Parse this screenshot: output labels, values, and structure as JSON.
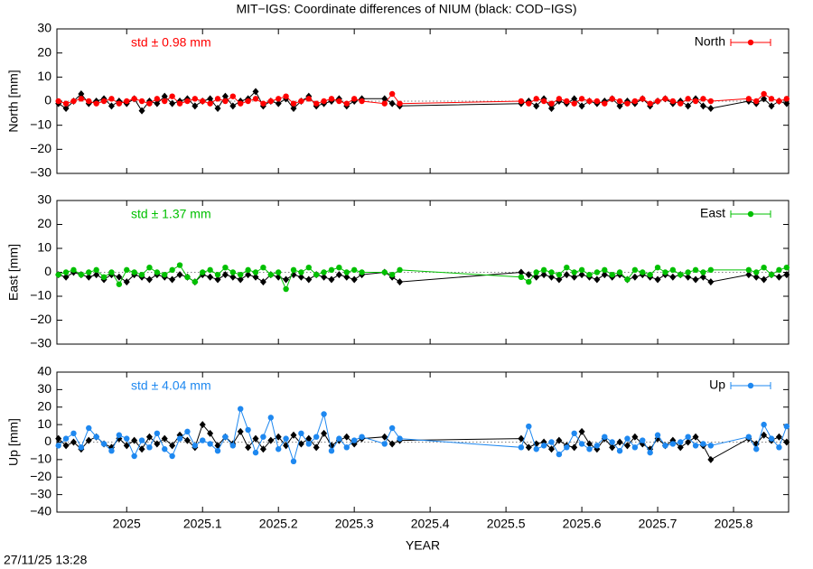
{
  "title": "MIT−IGS: Coordinate differences of NIUM (black: COD−IGS)",
  "timestamp": "27/11/25 13:28",
  "chart_data": [
    {
      "type": "line",
      "ylabel": "North [mm]",
      "annotation": "std ± 0.98 mm",
      "legend": "upper right",
      "hline": 0,
      "xlim": [
        2024.908,
        2025.8726
      ],
      "ylim": [
        -30,
        30
      ],
      "yticks": [
        {
          "value": -30,
          "label": "−30"
        },
        {
          "value": -20,
          "label": "−20"
        },
        {
          "value": -10,
          "label": "−10"
        },
        0,
        10,
        20,
        30
      ],
      "x": [
        2024.91,
        2024.92,
        2024.93,
        2024.94,
        2024.95,
        2024.96,
        2024.97,
        2024.98,
        2024.99,
        2025.0,
        2025.01,
        2025.02,
        2025.03,
        2025.04,
        2025.05,
        2025.06,
        2025.07,
        2025.08,
        2025.09,
        2025.1,
        2025.11,
        2025.12,
        2025.13,
        2025.14,
        2025.15,
        2025.16,
        2025.17,
        2025.18,
        2025.19,
        2025.2,
        2025.21,
        2025.22,
        2025.23,
        2025.24,
        2025.25,
        2025.26,
        2025.27,
        2025.28,
        2025.29,
        2025.3,
        2025.31,
        2025.34,
        2025.35,
        2025.36,
        2025.52,
        2025.53,
        2025.54,
        2025.55,
        2025.56,
        2025.57,
        2025.58,
        2025.59,
        2025.6,
        2025.61,
        2025.62,
        2025.63,
        2025.64,
        2025.65,
        2025.66,
        2025.67,
        2025.68,
        2025.69,
        2025.7,
        2025.71,
        2025.72,
        2025.73,
        2025.74,
        2025.75,
        2025.76,
        2025.77,
        2025.82,
        2025.83,
        2025.84,
        2025.85,
        2025.86,
        2025.87
      ],
      "series": [
        {
          "color": "#000000",
          "values": [
            -1,
            -3,
            0,
            3,
            -1,
            0,
            1,
            -2,
            0,
            -1,
            1,
            -4,
            0,
            -1,
            2,
            -1,
            0,
            1,
            -2,
            0,
            1,
            -3,
            2,
            -2,
            0,
            1,
            4,
            -2,
            0,
            -1,
            1,
            -3,
            0,
            2,
            -2,
            -1,
            0,
            1,
            -2,
            0,
            1,
            1,
            -1,
            -2,
            -1,
            0,
            -2,
            1,
            -3,
            0,
            -1,
            1,
            -2,
            0,
            -1,
            0,
            1,
            -2,
            0,
            -1,
            1,
            -2,
            0,
            1,
            -1,
            0,
            -2,
            1,
            -2,
            -3,
            0,
            -1,
            1,
            -2,
            0,
            -1
          ]
        },
        {
          "name": "North",
          "color": "#ff0000",
          "values": [
            0,
            -1,
            0,
            1,
            0,
            -1,
            0,
            1,
            -1,
            0,
            1,
            0,
            -1,
            1,
            0,
            2,
            -1,
            0,
            1,
            0,
            -1,
            1,
            0,
            2,
            -1,
            0,
            1,
            -1,
            0,
            1,
            2,
            -1,
            0,
            1,
            -1,
            0,
            1,
            0,
            -1,
            1,
            0,
            -1,
            3,
            -1,
            0,
            -1,
            1,
            0,
            -1,
            1,
            0,
            -1,
            1,
            0,
            0,
            -1,
            1,
            0,
            -1,
            0,
            1,
            -1,
            0,
            1,
            0,
            -1,
            1,
            0,
            1,
            0,
            1,
            0,
            3,
            1,
            0,
            1
          ]
        }
      ]
    },
    {
      "type": "line",
      "ylabel": "East [mm]",
      "annotation": "std ± 1.37 mm",
      "legend": "upper right",
      "hline": 0,
      "xlim": [
        2024.908,
        2025.8726
      ],
      "ylim": [
        -30,
        30
      ],
      "yticks": [
        {
          "value": -30,
          "label": "−30"
        },
        {
          "value": -20,
          "label": "−20"
        },
        {
          "value": -10,
          "label": "−10"
        },
        0,
        10,
        20,
        30
      ],
      "x": [
        2024.91,
        2024.92,
        2024.93,
        2024.94,
        2024.95,
        2024.96,
        2024.97,
        2024.98,
        2024.99,
        2025.0,
        2025.01,
        2025.02,
        2025.03,
        2025.04,
        2025.05,
        2025.06,
        2025.07,
        2025.08,
        2025.09,
        2025.1,
        2025.11,
        2025.12,
        2025.13,
        2025.14,
        2025.15,
        2025.16,
        2025.17,
        2025.18,
        2025.19,
        2025.2,
        2025.21,
        2025.22,
        2025.23,
        2025.24,
        2025.25,
        2025.26,
        2025.27,
        2025.28,
        2025.29,
        2025.3,
        2025.31,
        2025.34,
        2025.35,
        2025.36,
        2025.52,
        2025.53,
        2025.54,
        2025.55,
        2025.56,
        2025.57,
        2025.58,
        2025.59,
        2025.6,
        2025.61,
        2025.62,
        2025.63,
        2025.64,
        2025.65,
        2025.66,
        2025.67,
        2025.68,
        2025.69,
        2025.7,
        2025.71,
        2025.72,
        2025.73,
        2025.74,
        2025.75,
        2025.76,
        2025.77,
        2025.82,
        2025.83,
        2025.84,
        2025.85,
        2025.86,
        2025.87
      ],
      "series": [
        {
          "color": "#000000",
          "values": [
            -1,
            -2,
            0,
            -1,
            -2,
            -1,
            -3,
            -1,
            -2,
            -4,
            -1,
            -2,
            -3,
            -1,
            -2,
            -3,
            -1,
            -2,
            -4,
            -1,
            -2,
            -3,
            -1,
            -2,
            -3,
            -1,
            -2,
            -4,
            -1,
            -2,
            -3,
            -1,
            -2,
            -3,
            -1,
            -2,
            -3,
            -1,
            -2,
            -3,
            -1,
            0,
            -2,
            -4,
            0,
            -1,
            -2,
            -1,
            -2,
            -3,
            -1,
            -2,
            -1,
            -2,
            -3,
            -1,
            -2,
            -1,
            -3,
            -2,
            -1,
            -2,
            -3,
            -1,
            -2,
            -1,
            -2,
            -3,
            -2,
            -4,
            -1,
            -2,
            -3,
            -1,
            -2,
            -1
          ]
        },
        {
          "name": "East",
          "color": "#00c000",
          "values": [
            -1,
            0,
            1,
            -1,
            0,
            1,
            -2,
            0,
            -5,
            1,
            0,
            -1,
            2,
            0,
            -1,
            1,
            3,
            -2,
            -4,
            0,
            1,
            -1,
            2,
            0,
            -1,
            1,
            0,
            2,
            -1,
            0,
            -7,
            1,
            0,
            2,
            -1,
            0,
            1,
            2,
            0,
            1,
            0,
            0,
            -1,
            1,
            -2,
            -4,
            0,
            1,
            0,
            -1,
            2,
            0,
            1,
            -1,
            0,
            1,
            -1,
            0,
            -3,
            1,
            0,
            -1,
            2,
            0,
            1,
            -1,
            0,
            1,
            0,
            1,
            1,
            0,
            2,
            -1,
            1,
            2
          ]
        }
      ]
    },
    {
      "type": "line",
      "ylabel": "Up [mm]",
      "annotation": "std ± 4.04 mm",
      "legend": "upper right",
      "hline": 0,
      "xlabel": "YEAR",
      "xlim": [
        2024.908,
        2025.8726
      ],
      "ylim": [
        -40,
        40
      ],
      "xticks": [
        2025,
        2025.1,
        2025.2,
        2025.3,
        2025.4,
        2025.5,
        2025.6,
        2025.7,
        2025.8
      ],
      "yticks": [
        {
          "value": -40,
          "label": "−40"
        },
        {
          "value": -30,
          "label": "−30"
        },
        {
          "value": -20,
          "label": "−20"
        },
        {
          "value": -10,
          "label": "−10"
        },
        0,
        10,
        20,
        30,
        40
      ],
      "x": [
        2024.91,
        2024.92,
        2024.93,
        2024.94,
        2024.95,
        2024.96,
        2024.97,
        2024.98,
        2024.99,
        2025.0,
        2025.01,
        2025.02,
        2025.03,
        2025.04,
        2025.05,
        2025.06,
        2025.07,
        2025.08,
        2025.09,
        2025.1,
        2025.11,
        2025.12,
        2025.13,
        2025.14,
        2025.15,
        2025.16,
        2025.17,
        2025.18,
        2025.19,
        2025.2,
        2025.21,
        2025.22,
        2025.23,
        2025.24,
        2025.25,
        2025.26,
        2025.27,
        2025.28,
        2025.29,
        2025.3,
        2025.31,
        2025.34,
        2025.35,
        2025.36,
        2025.52,
        2025.53,
        2025.54,
        2025.55,
        2025.56,
        2025.57,
        2025.58,
        2025.59,
        2025.6,
        2025.61,
        2025.62,
        2025.63,
        2025.64,
        2025.65,
        2025.66,
        2025.67,
        2025.68,
        2025.69,
        2025.7,
        2025.71,
        2025.72,
        2025.73,
        2025.74,
        2025.75,
        2025.76,
        2025.77,
        2025.82,
        2025.83,
        2025.84,
        2025.85,
        2025.86,
        2025.87
      ],
      "series": [
        {
          "color": "#000000",
          "values": [
            2,
            -2,
            0,
            -4,
            1,
            3,
            -1,
            -3,
            2,
            -2,
            1,
            -4,
            3,
            -1,
            2,
            -2,
            4,
            1,
            -3,
            10,
            5,
            -2,
            3,
            -1,
            6,
            -3,
            2,
            -4,
            1,
            3,
            -2,
            4,
            -1,
            2,
            -3,
            5,
            -2,
            1,
            3,
            -1,
            2,
            3,
            -1,
            1,
            2,
            -3,
            -1,
            0,
            -4,
            1,
            -2,
            -3,
            6,
            -1,
            -4,
            2,
            -3,
            0,
            -2,
            3,
            -1,
            -4,
            2,
            -2,
            1,
            -3,
            0,
            3,
            -2,
            -10,
            2,
            -1,
            4,
            1,
            3,
            0
          ]
        },
        {
          "name": "Up",
          "color": "#1e88f0",
          "values": [
            -2,
            2,
            5,
            -3,
            8,
            3,
            -1,
            -5,
            4,
            2,
            -8,
            1,
            -3,
            5,
            -4,
            -8,
            2,
            6,
            -2,
            1,
            -1,
            -5,
            3,
            -2,
            19,
            7,
            -6,
            3,
            14,
            -4,
            2,
            -11,
            5,
            -1,
            3,
            16,
            -5,
            2,
            -3,
            1,
            3,
            -1,
            8,
            2,
            -3,
            9,
            -4,
            -2,
            0,
            -7,
            -3,
            5,
            -1,
            -4,
            -2,
            3,
            0,
            -5,
            2,
            -3,
            1,
            -6,
            4,
            -2,
            -1,
            0,
            3,
            -2,
            -1,
            -2,
            3,
            -4,
            10,
            2,
            -3,
            9
          ]
        }
      ]
    }
  ]
}
